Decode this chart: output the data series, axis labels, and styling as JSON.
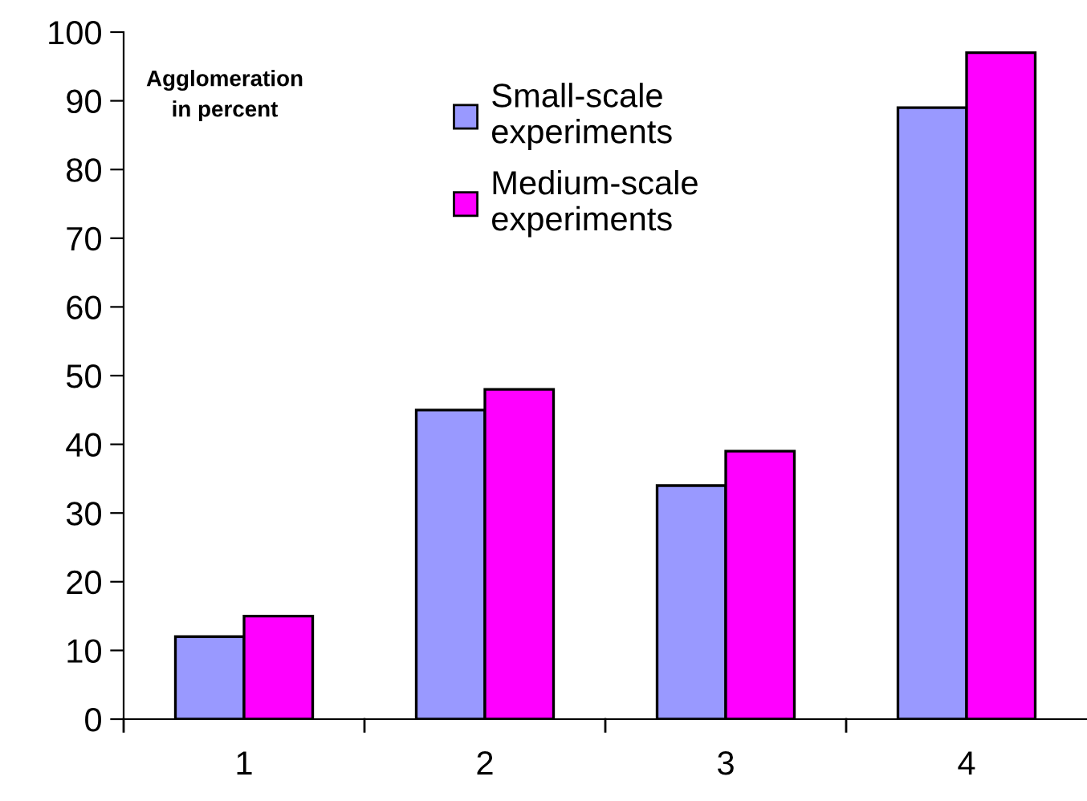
{
  "chart_data": {
    "type": "bar",
    "ylabel": "Agglomeration\nin percent",
    "categories": [
      "1",
      "2",
      "3",
      "4"
    ],
    "series": [
      {
        "name": "Small-scale\nexperiments",
        "color": "#9999ff",
        "values": [
          12,
          45,
          34,
          89
        ]
      },
      {
        "name": "Medium-scale\nexperiments",
        "color": "#ff00ff",
        "values": [
          15,
          48,
          39,
          97
        ]
      }
    ],
    "ylim": [
      0,
      100
    ],
    "yticks": [
      0,
      10,
      20,
      30,
      40,
      50,
      60,
      70,
      80,
      90,
      100
    ],
    "grid": false,
    "legend": "top"
  }
}
